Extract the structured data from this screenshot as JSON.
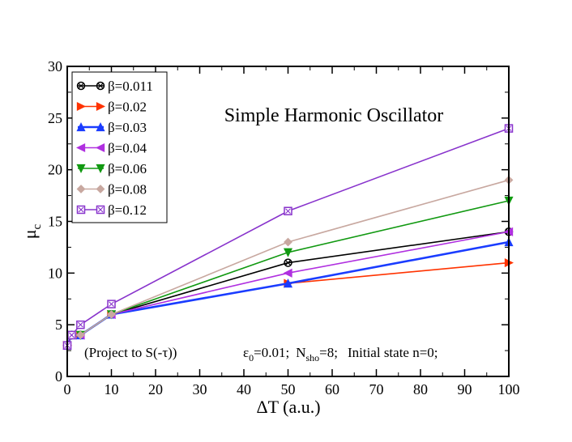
{
  "chart_data": {
    "type": "line",
    "title": "Simple Harmonic Oscillator",
    "xlabel_main": "ΔT",
    "xlabel_unit": " (a.u.)",
    "ylabel_main": "μ",
    "ylabel_sub": "c",
    "xlim": [
      0,
      100
    ],
    "ylim": [
      0,
      30
    ],
    "xticks": [
      0,
      10,
      20,
      30,
      40,
      50,
      60,
      70,
      80,
      90,
      100
    ],
    "yticks": [
      0,
      5,
      10,
      15,
      20,
      25,
      30
    ],
    "legend_position": "top-left",
    "grid": false,
    "annotation": {
      "project": "(Project to S(-τ))",
      "eps_sym": "ε",
      "eps_sub": "0",
      "eps_val": "=0.01;",
      "nsho_main": "N",
      "nsho_sub": "sho",
      "nsho_val": "=8;",
      "initial": "Initial state n=0;"
    },
    "series": [
      {
        "name": "β=0.011",
        "color": "#000000",
        "marker": "circle-x",
        "x": [
          0,
          1,
          3,
          10,
          50,
          100
        ],
        "y": [
          3,
          4,
          4,
          6,
          11,
          14
        ]
      },
      {
        "name": "β=0.02",
        "color": "#ff3300",
        "marker": "triangle-right",
        "x": [
          0,
          1,
          3,
          10,
          50,
          100
        ],
        "y": [
          3,
          4,
          4,
          6,
          9,
          11
        ]
      },
      {
        "name": "β=0.03",
        "color": "#1a3cff",
        "marker": "triangle-up",
        "x": [
          0,
          1,
          3,
          10,
          50,
          100
        ],
        "y": [
          3,
          4,
          4,
          6,
          9,
          13
        ]
      },
      {
        "name": "β=0.04",
        "color": "#b030e0",
        "marker": "triangle-left",
        "x": [
          0,
          1,
          3,
          10,
          50,
          100
        ],
        "y": [
          3,
          4,
          4,
          6,
          10,
          14
        ]
      },
      {
        "name": "β=0.06",
        "color": "#119911",
        "marker": "triangle-down",
        "x": [
          0,
          1,
          3,
          10,
          50,
          100
        ],
        "y": [
          3,
          4,
          4,
          6,
          12,
          17
        ]
      },
      {
        "name": "β=0.08",
        "color": "#c8a8a0",
        "marker": "diamond",
        "x": [
          0,
          1,
          3,
          10,
          50,
          100
        ],
        "y": [
          3,
          4,
          4,
          6,
          13,
          19
        ]
      },
      {
        "name": "β=0.12",
        "color": "#8833cc",
        "marker": "square-x",
        "x": [
          0,
          1,
          3,
          10,
          50,
          100
        ],
        "y": [
          3,
          4,
          5,
          7,
          16,
          24
        ]
      }
    ]
  }
}
